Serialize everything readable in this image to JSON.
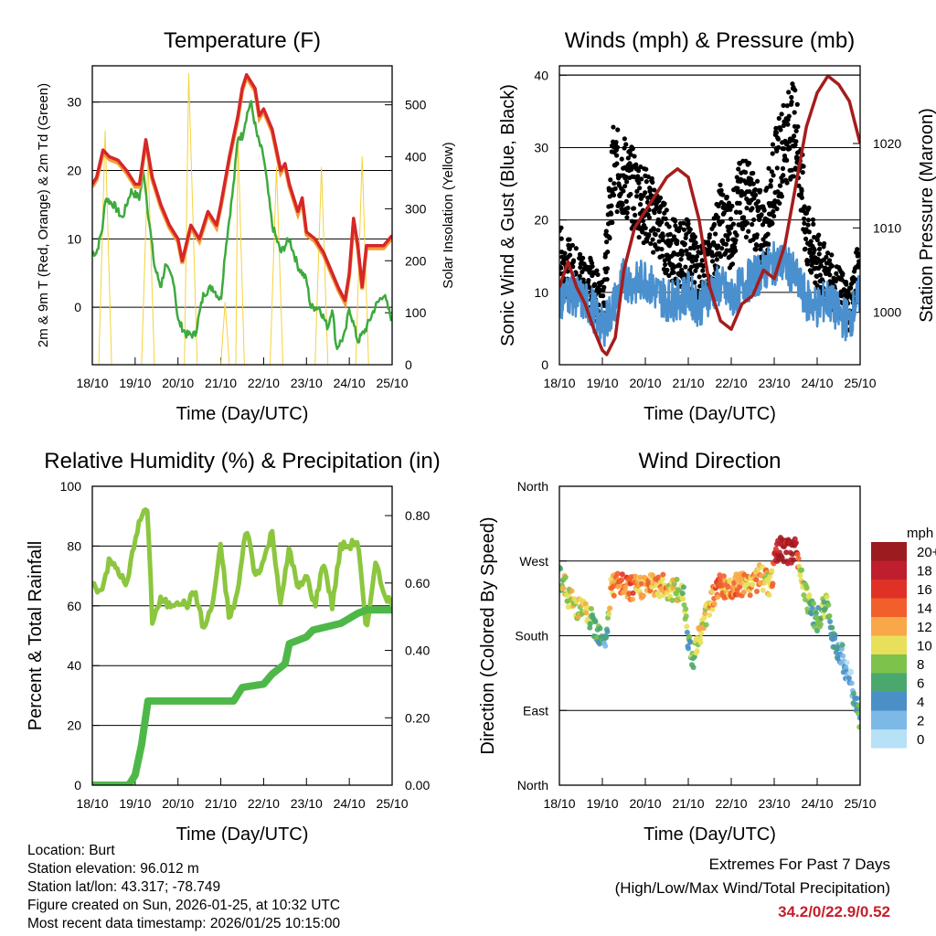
{
  "chart_data": [
    {
      "type": "line",
      "title": "Temperature (F)",
      "xlabel": "Time (Day/UTC)",
      "ylabel": "2m & 9m T (Red, Orange) & 2m Td (Green)",
      "y2label": "Solar Insolation (Yellow)",
      "xticks": [
        "18/10",
        "19/10",
        "20/10",
        "21/10",
        "22/10",
        "23/10",
        "24/10",
        "25/10"
      ],
      "xlim": [
        0,
        7
      ],
      "yticks": [
        0,
        10,
        20,
        30
      ],
      "ylim": [
        -8.4,
        35.3
      ],
      "y2ticks": [
        0,
        100,
        200,
        300,
        400,
        500
      ],
      "y2lim": [
        0,
        575
      ],
      "grid": true,
      "series": [
        {
          "name": "2m & 9m Temperature",
          "color": "#d62728",
          "axis": "left",
          "x": [
            0,
            0.1,
            0.25,
            0.4,
            0.6,
            0.8,
            1.0,
            1.1,
            1.25,
            1.4,
            1.6,
            1.8,
            2.0,
            2.1,
            2.3,
            2.5,
            2.7,
            2.9,
            3.0,
            3.2,
            3.4,
            3.5,
            3.6,
            3.8,
            3.9,
            4.0,
            4.2,
            4.4,
            4.5,
            4.6,
            4.8,
            4.9,
            5.0,
            5.2,
            5.4,
            5.6,
            5.75,
            5.9,
            6.0,
            6.1,
            6.2,
            6.3,
            6.4,
            6.6,
            6.8,
            7.0
          ],
          "y": [
            18,
            19,
            23,
            22,
            21.5,
            20,
            18,
            18,
            24.5,
            19,
            15,
            12,
            10,
            6.8,
            12,
            10,
            14,
            12,
            15,
            22,
            28,
            32,
            34,
            32,
            28,
            29,
            26,
            20,
            21,
            18,
            14,
            16,
            11,
            10,
            8,
            5,
            2.8,
            1,
            5,
            13,
            9,
            3,
            9,
            9,
            9,
            10.5
          ]
        },
        {
          "name": "2m Dewpoint",
          "color": "#3daa3d",
          "axis": "left",
          "x": [
            0,
            0.1,
            0.25,
            0.3,
            0.5,
            0.7,
            0.9,
            1.1,
            1.2,
            1.3,
            1.45,
            1.6,
            1.7,
            1.9,
            2.0,
            2.2,
            2.4,
            2.5,
            2.6,
            2.8,
            3.0,
            3.1,
            3.3,
            3.4,
            3.5,
            3.6,
            3.7,
            3.85,
            4.0,
            4.2,
            4.4,
            4.6,
            4.8,
            5.0,
            5.1,
            5.3,
            5.5,
            5.6,
            5.7,
            5.9,
            6.0,
            6.2,
            6.4,
            6.6,
            6.8,
            7.0
          ],
          "y": [
            8,
            8,
            12,
            16,
            15,
            13,
            17,
            16,
            20,
            14,
            6,
            3,
            6,
            4,
            -2,
            -4,
            -4,
            -1,
            2,
            3,
            1,
            8,
            18,
            25,
            25,
            28,
            30,
            25,
            22,
            12,
            8,
            10,
            6,
            4,
            0,
            0,
            -3,
            0,
            -6,
            -4,
            0,
            -5,
            -3,
            0,
            2,
            -2
          ]
        },
        {
          "name": "Solar Insolation",
          "color": "#f5d23c",
          "axis": "right",
          "x": [
            0,
            0.15,
            0.3,
            0.45,
            1.0,
            1.15,
            1.3,
            1.45,
            2.0,
            2.15,
            2.25,
            2.45,
            3.0,
            3.1,
            3.2,
            3.35,
            3.4,
            3.55,
            4.0,
            4.15,
            4.3,
            4.45,
            5.0,
            5.2,
            5.35,
            5.5,
            6.0,
            6.15,
            6.3,
            6.45,
            7.0
          ],
          "y": [
            0,
            0,
            450,
            0,
            0,
            0,
            400,
            0,
            0,
            0,
            560,
            0,
            0,
            120,
            0,
            0,
            440,
            0,
            0,
            0,
            380,
            0,
            0,
            0,
            380,
            0,
            0,
            0,
            400,
            0,
            0
          ]
        }
      ]
    },
    {
      "type": "scatter",
      "title": "Winds (mph) & Pressure (mb)",
      "xlabel": "Time (Day/UTC)",
      "ylabel": "Sonic Wind & Gust (Blue, Black)",
      "y2label": "Station Pressure (Maroon)",
      "xticks": [
        "18/10",
        "19/10",
        "20/10",
        "21/10",
        "22/10",
        "23/10",
        "24/10",
        "25/10"
      ],
      "xlim": [
        0,
        7
      ],
      "yticks": [
        0,
        10,
        20,
        30,
        40
      ],
      "ylim": [
        0,
        41.3
      ],
      "y2ticks": [
        1000,
        1010,
        1020
      ],
      "y2lim": [
        993.8,
        1029.2
      ],
      "grid": true,
      "series": [
        {
          "name": "Sonic Wind",
          "color": "#4a90cf",
          "axis": "left",
          "x": [
            0,
            0.25,
            0.5,
            0.75,
            1.0,
            1.25,
            1.5,
            1.75,
            2.0,
            2.25,
            2.5,
            2.75,
            3.0,
            3.25,
            3.5,
            3.75,
            4.0,
            4.25,
            4.5,
            4.75,
            5.0,
            5.25,
            5.5,
            5.75,
            6.0,
            6.25,
            6.5,
            6.75,
            7.0
          ],
          "y": [
            9,
            10,
            9,
            8,
            5,
            8,
            12,
            11,
            12,
            10,
            9,
            9,
            10,
            8,
            10,
            11,
            9,
            11,
            12,
            13,
            14,
            14,
            12,
            9,
            8,
            9,
            7,
            6,
            10
          ]
        },
        {
          "name": "Gust",
          "color": "#000000",
          "axis": "left",
          "x": [
            0,
            0.25,
            0.5,
            0.75,
            1.0,
            1.25,
            1.5,
            1.75,
            2.0,
            2.25,
            2.5,
            2.75,
            3.0,
            3.25,
            3.5,
            3.75,
            4.0,
            4.25,
            4.5,
            4.75,
            5.0,
            5.25,
            5.5,
            5.75,
            6.0,
            6.25,
            6.5,
            6.75,
            7.0
          ],
          "y": [
            15,
            13,
            12,
            11,
            8,
            27,
            26,
            24,
            22,
            20,
            17,
            15,
            16,
            12,
            14,
            20,
            18,
            24,
            22,
            18,
            26,
            31,
            33,
            18,
            14,
            12,
            10,
            8,
            14
          ]
        },
        {
          "name": "Station Pressure",
          "color": "#a51d1d",
          "axis": "right",
          "x": [
            0,
            0.2,
            0.4,
            0.6,
            0.8,
            1.0,
            1.1,
            1.3,
            1.5,
            1.75,
            2.0,
            2.25,
            2.5,
            2.75,
            3.0,
            3.25,
            3.5,
            3.75,
            4.0,
            4.25,
            4.5,
            4.75,
            5.0,
            5.25,
            5.5,
            5.75,
            6.0,
            6.25,
            6.5,
            6.75,
            7.0
          ],
          "y": [
            1003,
            1006,
            1003,
            1001,
            998,
            995.5,
            995,
            997,
            1005,
            1010,
            1012,
            1014,
            1016,
            1017,
            1016,
            1011,
            1003,
            999,
            998,
            1001,
            1002,
            1005,
            1004,
            1008,
            1015,
            1022,
            1026,
            1028,
            1027,
            1025,
            1020
          ]
        }
      ]
    },
    {
      "type": "line",
      "title": "Relative Humidity (%) & Precipitation (in)",
      "xlabel": "Time (Day/UTC)",
      "ylabel": "Percent & Total Rainfall",
      "xticks": [
        "18/10",
        "19/10",
        "20/10",
        "21/10",
        "22/10",
        "23/10",
        "24/10",
        "25/10"
      ],
      "xlim": [
        0,
        7
      ],
      "yticks": [
        0,
        20,
        40,
        60,
        80,
        100
      ],
      "ylim": [
        0,
        100
      ],
      "y2ticks": [
        "0.00",
        "0.20",
        "0.40",
        "0.60",
        "0.80"
      ],
      "y2lim": [
        0,
        0.887
      ],
      "grid": true,
      "series": [
        {
          "name": "Relative Humidity",
          "color": "#8cc63f",
          "axis": "left",
          "x": [
            0,
            0.2,
            0.4,
            0.6,
            0.8,
            1.0,
            1.2,
            1.3,
            1.4,
            1.6,
            1.8,
            2.0,
            2.2,
            2.4,
            2.6,
            2.8,
            3.0,
            3.2,
            3.4,
            3.6,
            3.8,
            4.0,
            4.2,
            4.4,
            4.6,
            4.8,
            5.0,
            5.2,
            5.4,
            5.6,
            5.8,
            6.0,
            6.2,
            6.4,
            6.6,
            6.8,
            7.0
          ],
          "y": [
            67,
            65,
            75,
            72,
            66,
            83,
            92,
            90,
            55,
            62,
            60,
            62,
            60,
            65,
            52,
            60,
            80,
            55,
            65,
            87,
            70,
            75,
            85,
            60,
            80,
            65,
            70,
            60,
            75,
            60,
            80,
            80,
            82,
            50,
            75,
            65,
            60
          ]
        },
        {
          "name": "Total Precipitation",
          "color": "#4db848",
          "axis": "right",
          "x": [
            0,
            0.85,
            1.0,
            1.15,
            1.3,
            3.3,
            3.5,
            4.0,
            4.2,
            4.5,
            4.6,
            5.0,
            5.15,
            5.8,
            6.2,
            6.4,
            7.0
          ],
          "y": [
            0,
            0,
            0.03,
            0.12,
            0.25,
            0.25,
            0.29,
            0.3,
            0.33,
            0.36,
            0.42,
            0.44,
            0.46,
            0.48,
            0.51,
            0.52,
            0.52
          ]
        }
      ]
    },
    {
      "type": "scatter",
      "title": "Wind Direction",
      "xlabel": "Time (Day/UTC)",
      "ylabel": "Direction (Colored By Speed)",
      "xticks": [
        "18/10",
        "19/10",
        "20/10",
        "21/10",
        "22/10",
        "23/10",
        "24/10",
        "25/10"
      ],
      "xlim": [
        0,
        7
      ],
      "yticks": [
        {
          "v": 0,
          "label": "North"
        },
        {
          "v": 90,
          "label": "East"
        },
        {
          "v": 180,
          "label": "South"
        },
        {
          "v": 270,
          "label": "West"
        },
        {
          "v": 360,
          "label": "North"
        }
      ],
      "ylim": [
        0,
        360
      ],
      "grid": true,
      "points": {
        "day": [
          0,
          0.3,
          0.6,
          0.9,
          1.1,
          1.2,
          1.4,
          1.7,
          2.0,
          2.3,
          2.6,
          2.9,
          3.0,
          3.1,
          3.3,
          3.5,
          3.7,
          3.9,
          4.2,
          4.4,
          4.7,
          4.9,
          5.1,
          5.3,
          5.5,
          5.6,
          5.8,
          6.0,
          6.2,
          6.4,
          6.6,
          6.8,
          7.0
        ],
        "direction_deg": [
          252,
          219,
          208,
          186,
          175,
          241,
          241,
          236,
          241,
          241,
          236,
          230,
          175,
          153,
          186,
          219,
          241,
          236,
          241,
          241,
          252,
          241,
          285,
          280,
          285,
          263,
          219,
          197,
          219,
          175,
          153,
          120,
          76
        ],
        "speed_mph": [
          8,
          10,
          10,
          6,
          5,
          12,
          14,
          13,
          12,
          12,
          11,
          8,
          6,
          8,
          10,
          12,
          14,
          12,
          14,
          12,
          12,
          10,
          20,
          19,
          20,
          10,
          8,
          6,
          8,
          4,
          3,
          2,
          7
        ]
      },
      "legend": {
        "title": "mph",
        "position": "right",
        "labels": [
          "20+",
          "18",
          "16",
          "14",
          "12",
          "10",
          "8",
          "6",
          "4",
          "2",
          "0"
        ],
        "colors": [
          "#9b1b1f",
          "#be1e2d",
          "#e03127",
          "#f15f2a",
          "#f8a848",
          "#e8e05a",
          "#7dc24b",
          "#4aa86e",
          "#4a8fc6",
          "#7db9e6",
          "#b6e1f7"
        ]
      }
    }
  ],
  "footer": {
    "lines": [
      "Location: Burt",
      "Station elevation: 96.012 m",
      "Station lat/lon: 43.317; -78.749",
      "Figure created on Sun, 2026-01-25, at 10:32 UTC",
      "Most recent data timestamp: 2026/01/25 10:15:00"
    ],
    "extremes_title": "Extremes For Past 7 Days",
    "extremes_sub": "(High/Low/Max Wind/Total Precipitation)",
    "extremes_values": "34.2/0/22.9/0.52"
  }
}
